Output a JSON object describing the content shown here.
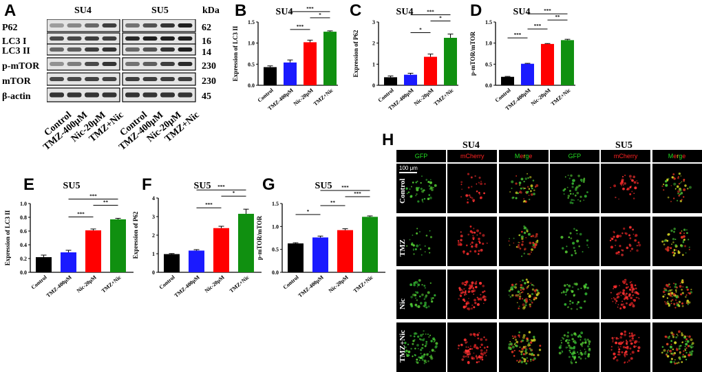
{
  "panels": {
    "A": "A",
    "B": "B",
    "C": "C",
    "D": "D",
    "E": "E",
    "F": "F",
    "G": "G",
    "H": "H"
  },
  "blot": {
    "groups": [
      "SU4",
      "SU5"
    ],
    "kda_header": "kDa",
    "rows": [
      {
        "label": "P62",
        "kda": "62"
      },
      {
        "label": "LC3 I",
        "kda": "16"
      },
      {
        "label": "LC3 II",
        "kda": "14"
      },
      {
        "label": "p-mTOR",
        "kda": "230"
      },
      {
        "label": "mTOR",
        "kda": "230"
      },
      {
        "label": "β-actin",
        "kda": "45"
      }
    ],
    "lanes": [
      "Control",
      "TMZ-400μM",
      "Nic-20μM",
      "TMZ+Nic"
    ]
  },
  "chart_data": [
    {
      "panel": "B",
      "type": "bar",
      "title": "SU4",
      "ylabel": "Expression of LC3 II",
      "categories": [
        "Control",
        "TMZ-400μM",
        "Nic-20μM",
        "TMZ+Nic"
      ],
      "values": [
        0.43,
        0.54,
        1.02,
        1.27
      ],
      "errors": [
        0.03,
        0.06,
        0.05,
        0.02
      ],
      "ylim": [
        0,
        1.5
      ],
      "yticks": [
        "0.0",
        "0.5",
        "1.0",
        "1.5"
      ],
      "colors": [
        "#000000",
        "#1a1aff",
        "#ff0000",
        "#109010"
      ],
      "brackets": [
        {
          "from": 1,
          "to": 2,
          "label": "***",
          "level": 0
        },
        {
          "from": 2,
          "to": 3,
          "label": "*",
          "level": 1
        },
        {
          "from": 1,
          "to": 3,
          "label": "***",
          "level": 2
        }
      ]
    },
    {
      "panel": "C",
      "type": "bar",
      "title": "SU4",
      "ylabel": "Expression of P62",
      "categories": [
        "Control",
        "TMZ-400μM",
        "Nic-20μM",
        "TMZ+Nic"
      ],
      "values": [
        0.38,
        0.5,
        1.35,
        2.25
      ],
      "errors": [
        0.06,
        0.07,
        0.13,
        0.18
      ],
      "ylim": [
        0,
        3
      ],
      "yticks": [
        "0",
        "1",
        "2",
        "3"
      ],
      "colors": [
        "#000000",
        "#1a1aff",
        "#ff0000",
        "#109010"
      ],
      "brackets": [
        {
          "from": 1,
          "to": 2,
          "label": "*",
          "level": 0
        },
        {
          "from": 2,
          "to": 3,
          "label": "*",
          "level": 1
        },
        {
          "from": 1,
          "to": 3,
          "label": "***",
          "level": 2
        }
      ]
    },
    {
      "panel": "D",
      "type": "bar",
      "title": "SU4",
      "ylabel": "p-mTOR/mTOR",
      "categories": [
        "Control",
        "TMZ-400μM",
        "Nic-20μM",
        "TMZ+Nic"
      ],
      "values": [
        0.2,
        0.51,
        0.98,
        1.07
      ],
      "errors": [
        0.01,
        0.01,
        0.01,
        0.02
      ],
      "ylim": [
        0,
        1.5
      ],
      "yticks": [
        "0.0",
        "0.5",
        "1.0",
        "1.5"
      ],
      "colors": [
        "#000000",
        "#1a1aff",
        "#ff0000",
        "#109010"
      ],
      "brackets": [
        {
          "from": 0,
          "to": 1,
          "label": "***",
          "level": 0
        },
        {
          "from": 1,
          "to": 2,
          "label": "***",
          "level": 1
        },
        {
          "from": 2,
          "to": 3,
          "label": "**",
          "level": 2
        },
        {
          "from": 1,
          "to": 3,
          "label": "***",
          "level": 3
        }
      ]
    },
    {
      "panel": "E",
      "type": "bar",
      "title": "SU5",
      "ylabel": "Expression of LC3 II",
      "categories": [
        "Control",
        "TMZ-400μM",
        "Nic-20μM",
        "TMZ+Nic"
      ],
      "values": [
        0.22,
        0.29,
        0.61,
        0.77
      ],
      "errors": [
        0.03,
        0.03,
        0.02,
        0.015
      ],
      "ylim": [
        0,
        1.0
      ],
      "yticks": [
        "0.0",
        "0.2",
        "0.4",
        "0.6",
        "0.8",
        "1.0"
      ],
      "colors": [
        "#000000",
        "#1a1aff",
        "#ff0000",
        "#109010"
      ],
      "brackets": [
        {
          "from": 1,
          "to": 2,
          "label": "***",
          "level": 0
        },
        {
          "from": 2,
          "to": 3,
          "label": "**",
          "level": 1
        },
        {
          "from": 1,
          "to": 3,
          "label": "***",
          "level": 2
        }
      ]
    },
    {
      "panel": "F",
      "type": "bar",
      "title": "SU5",
      "ylabel": "Expression of P62",
      "categories": [
        "Control",
        "TMZ-400μM",
        "Nic-20μM",
        "TMZ+Nic"
      ],
      "values": [
        0.98,
        1.17,
        2.38,
        3.15
      ],
      "errors": [
        0.03,
        0.05,
        0.1,
        0.25
      ],
      "ylim": [
        0,
        4
      ],
      "yticks": [
        "0",
        "1",
        "2",
        "3",
        "4"
      ],
      "colors": [
        "#000000",
        "#1a1aff",
        "#ff0000",
        "#109010"
      ],
      "brackets": [
        {
          "from": 1,
          "to": 2,
          "label": "***",
          "level": 0
        },
        {
          "from": 2,
          "to": 3,
          "label": "*",
          "level": 1
        },
        {
          "from": 1,
          "to": 3,
          "label": "***",
          "level": 2
        }
      ]
    },
    {
      "panel": "G",
      "type": "bar",
      "title": "SU5",
      "ylabel": "p-mTOR/mTOR",
      "categories": [
        "Control",
        "TMZ-400μM",
        "Nic-20μM",
        "TMZ+Nic"
      ],
      "values": [
        0.63,
        0.76,
        0.92,
        1.21
      ],
      "errors": [
        0.015,
        0.03,
        0.03,
        0.02
      ],
      "ylim": [
        0,
        1.5
      ],
      "yticks": [
        "0.0",
        "0.5",
        "1.0",
        "1.5"
      ],
      "colors": [
        "#000000",
        "#1a1aff",
        "#ff0000",
        "#109010"
      ],
      "brackets": [
        {
          "from": 0,
          "to": 1,
          "label": "*",
          "level": 0
        },
        {
          "from": 1,
          "to": 2,
          "label": "**",
          "level": 1
        },
        {
          "from": 2,
          "to": 3,
          "label": "***",
          "level": 2
        },
        {
          "from": 1,
          "to": 3,
          "label": "***",
          "level": 3
        }
      ]
    }
  ],
  "microscopy": {
    "groups": [
      "SU4",
      "SU5"
    ],
    "channels": [
      "GFP",
      "mCherry",
      "Merge"
    ],
    "rows": [
      "Control",
      "TMZ",
      "Nic",
      "TMZ+Nic"
    ],
    "scale_bar": "100 μm"
  }
}
